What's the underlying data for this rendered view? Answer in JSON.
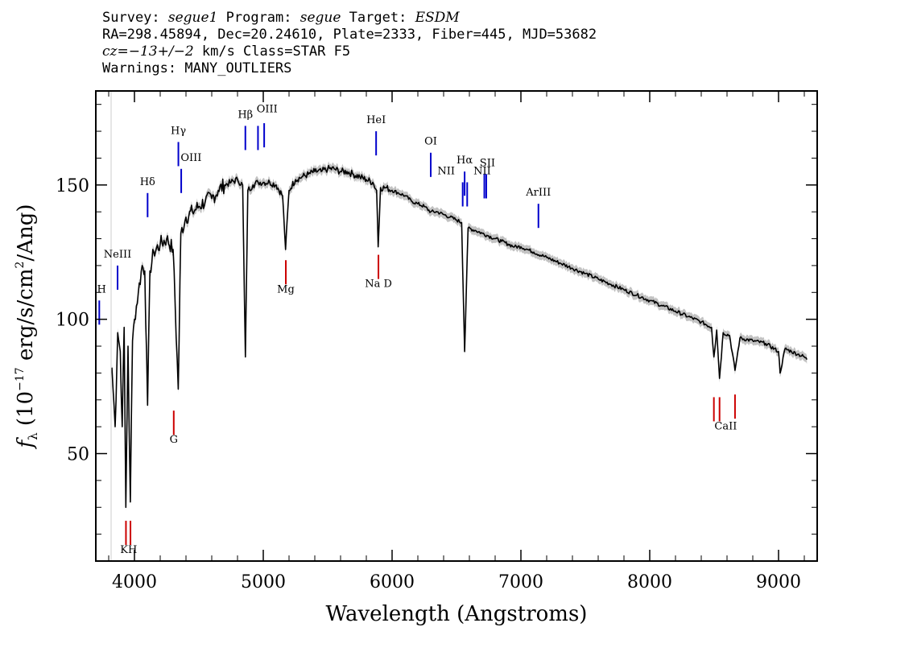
{
  "header": {
    "line1": {
      "survey_label": "Survey: ",
      "survey": "segue1",
      "program_label": " Program: ",
      "program": "segue",
      "target_label": " Target: ",
      "target": "ESDM"
    },
    "line2": "RA=298.45894, Dec=20.24610, Plate=2333, Fiber=445, MJD=53682",
    "line3": {
      "cz_sym": "cz",
      "cz_val": "=−13+/−2",
      "rest": " km/s Class=STAR F5"
    },
    "line4": "Warnings: MANY_OUTLIERS"
  },
  "chart_data": {
    "type": "line",
    "title": "",
    "xlabel": "Wavelength (Angstroms)",
    "ylabel_prefix": "f",
    "ylabel_sub": "λ",
    "ylabel_rest": " (10",
    "ylabel_exp": "−17",
    "ylabel_units": " erg/s/cm",
    "ylabel_exp2": "2",
    "ylabel_tail": "/Ang)",
    "xlim": [
      3700,
      9300
    ],
    "ylim": [
      10,
      185
    ],
    "xticks": [
      4000,
      5000,
      6000,
      7000,
      8000,
      9000
    ],
    "yticks": [
      50,
      100,
      150
    ],
    "grid": false,
    "colors": {
      "spectrum": "#000000",
      "error": "#bbbbbb",
      "emission": "#0000cc",
      "absorption": "#cc0000"
    },
    "spectrum": [
      [
        3825,
        82
      ],
      [
        3850,
        60
      ],
      [
        3870,
        95
      ],
      [
        3890,
        88
      ],
      [
        3905,
        60
      ],
      [
        3920,
        97
      ],
      [
        3933,
        30
      ],
      [
        3950,
        90
      ],
      [
        3968,
        32
      ],
      [
        3985,
        92
      ],
      [
        4000,
        100
      ],
      [
        4030,
        110
      ],
      [
        4060,
        120
      ],
      [
        4080,
        118
      ],
      [
        4102,
        68
      ],
      [
        4120,
        118
      ],
      [
        4150,
        125
      ],
      [
        4200,
        128
      ],
      [
        4250,
        130
      ],
      [
        4300,
        126
      ],
      [
        4340,
        74
      ],
      [
        4360,
        132
      ],
      [
        4400,
        138
      ],
      [
        4450,
        140
      ],
      [
        4500,
        142
      ],
      [
        4550,
        144
      ],
      [
        4600,
        145
      ],
      [
        4650,
        148
      ],
      [
        4700,
        150
      ],
      [
        4750,
        151
      ],
      [
        4800,
        152
      ],
      [
        4840,
        150
      ],
      [
        4861,
        86
      ],
      [
        4880,
        148
      ],
      [
        4920,
        150
      ],
      [
        4960,
        151
      ],
      [
        5000,
        151
      ],
      [
        5050,
        151
      ],
      [
        5100,
        150
      ],
      [
        5150,
        146
      ],
      [
        5173,
        126
      ],
      [
        5200,
        148
      ],
      [
        5250,
        152
      ],
      [
        5300,
        153
      ],
      [
        5350,
        154
      ],
      [
        5400,
        155
      ],
      [
        5450,
        155
      ],
      [
        5500,
        156
      ],
      [
        5550,
        156
      ],
      [
        5600,
        155
      ],
      [
        5650,
        155
      ],
      [
        5700,
        154
      ],
      [
        5750,
        153
      ],
      [
        5800,
        152
      ],
      [
        5850,
        151
      ],
      [
        5880,
        148
      ],
      [
        5892,
        127
      ],
      [
        5910,
        149
      ],
      [
        5950,
        149
      ],
      [
        6000,
        148
      ],
      [
        6050,
        147
      ],
      [
        6100,
        146
      ],
      [
        6150,
        144
      ],
      [
        6200,
        143
      ],
      [
        6250,
        142
      ],
      [
        6300,
        140
      ],
      [
        6350,
        140
      ],
      [
        6400,
        139
      ],
      [
        6450,
        138
      ],
      [
        6500,
        137
      ],
      [
        6540,
        136
      ],
      [
        6563,
        88
      ],
      [
        6590,
        134
      ],
      [
        6650,
        133
      ],
      [
        6700,
        132
      ],
      [
        6750,
        131
      ],
      [
        6800,
        130
      ],
      [
        6850,
        129
      ],
      [
        6900,
        128
      ],
      [
        6950,
        127
      ],
      [
        7000,
        127
      ],
      [
        7050,
        126
      ],
      [
        7100,
        125
      ],
      [
        7200,
        123
      ],
      [
        7300,
        121
      ],
      [
        7400,
        119
      ],
      [
        7500,
        117
      ],
      [
        7600,
        115
      ],
      [
        7700,
        113
      ],
      [
        7800,
        111
      ],
      [
        7900,
        109
      ],
      [
        8000,
        107
      ],
      [
        8100,
        105
      ],
      [
        8200,
        103
      ],
      [
        8300,
        101
      ],
      [
        8400,
        99
      ],
      [
        8480,
        97
      ],
      [
        8498,
        86
      ],
      [
        8520,
        96
      ],
      [
        8542,
        78
      ],
      [
        8570,
        95
      ],
      [
        8620,
        94
      ],
      [
        8662,
        81
      ],
      [
        8700,
        93
      ],
      [
        8800,
        92
      ],
      [
        8900,
        91
      ],
      [
        9000,
        88
      ],
      [
        9012,
        80
      ],
      [
        9050,
        89
      ],
      [
        9100,
        88
      ],
      [
        9150,
        87
      ],
      [
        9200,
        86
      ],
      [
        9220,
        85
      ]
    ],
    "line_marks": [
      {
        "label": "H",
        "kind": "emission",
        "x": 3727,
        "y_bottom": 98,
        "y_top": 107,
        "lx": 3745,
        "ly": 110
      },
      {
        "label": "NeIII",
        "kind": "emission",
        "x": 3869,
        "y_bottom": 111,
        "y_top": 120,
        "lx": 3869,
        "ly": 123
      },
      {
        "label": "Hδ",
        "kind": "emission",
        "x": 4102,
        "y_bottom": 138,
        "y_top": 147,
        "lx": 4102,
        "ly": 150
      },
      {
        "label": "Hγ",
        "kind": "emission",
        "x": 4341,
        "y_bottom": 157,
        "y_top": 166,
        "lx": 4341,
        "ly": 169
      },
      {
        "label": "OIII",
        "kind": "emission",
        "x": 4363,
        "y_bottom": 147,
        "y_top": 156,
        "lx": 4440,
        "ly": 159
      },
      {
        "label": "Hβ",
        "kind": "emission",
        "x": 4861,
        "y_bottom": 163,
        "y_top": 172,
        "lx": 4861,
        "ly": 175
      },
      {
        "label": "OIII",
        "kind": "emission",
        "x": 4959,
        "y_bottom": 163,
        "y_top": 172,
        "lx": 5030,
        "ly": 177
      },
      {
        "label": "",
        "kind": "emission",
        "x": 5007,
        "y_bottom": 164,
        "y_top": 173,
        "lx": 5007,
        "ly": 176
      },
      {
        "label": "HeI",
        "kind": "emission",
        "x": 5876,
        "y_bottom": 161,
        "y_top": 170,
        "lx": 5876,
        "ly": 173
      },
      {
        "label": "OI",
        "kind": "emission",
        "x": 6300,
        "y_bottom": 153,
        "y_top": 162,
        "lx": 6300,
        "ly": 165
      },
      {
        "label": "NII",
        "kind": "emission",
        "x": 6548,
        "y_bottom": 142,
        "y_top": 151,
        "lx": 6420,
        "ly": 154
      },
      {
        "label": "Hα",
        "kind": "emission",
        "x": 6563,
        "y_bottom": 146,
        "y_top": 155,
        "lx": 6563,
        "ly": 158
      },
      {
        "label": "",
        "kind": "emission",
        "x": 6583,
        "y_bottom": 142,
        "y_top": 151,
        "lx": 6583,
        "ly": 154
      },
      {
        "label": "NII",
        "kind": "emission",
        "x": 6716,
        "y_bottom": 145,
        "y_top": 154,
        "lx": 6700,
        "ly": 154
      },
      {
        "label": "SII",
        "kind": "emission",
        "x": 6731,
        "y_bottom": 145,
        "y_top": 154,
        "lx": 6740,
        "ly": 157
      },
      {
        "label": "ArIII",
        "kind": "emission",
        "x": 7136,
        "y_bottom": 134,
        "y_top": 143,
        "lx": 7136,
        "ly": 146
      },
      {
        "label": "KH",
        "kind": "absorption",
        "x": 3934,
        "y_bottom": 16,
        "y_top": 25,
        "lx": 3955,
        "ly": 13
      },
      {
        "label": "",
        "kind": "absorption",
        "x": 3969,
        "y_bottom": 16,
        "y_top": 25,
        "lx": 3969,
        "ly": 13
      },
      {
        "label": "G",
        "kind": "absorption",
        "x": 4305,
        "y_bottom": 57,
        "y_top": 66,
        "lx": 4305,
        "ly": 54
      },
      {
        "label": "Mg",
        "kind": "absorption",
        "x": 5175,
        "y_bottom": 113,
        "y_top": 122,
        "lx": 5175,
        "ly": 110
      },
      {
        "label": "Na D",
        "kind": "absorption",
        "x": 5894,
        "y_bottom": 115,
        "y_top": 124,
        "lx": 5894,
        "ly": 112
      },
      {
        "label": "CaII",
        "kind": "absorption",
        "x": 8498,
        "y_bottom": 62,
        "y_top": 71,
        "lx": 8590,
        "ly": 59
      },
      {
        "label": "",
        "kind": "absorption",
        "x": 8542,
        "y_bottom": 62,
        "y_top": 71,
        "lx": 8542,
        "ly": 59
      },
      {
        "label": "",
        "kind": "absorption",
        "x": 8662,
        "y_bottom": 63,
        "y_top": 72,
        "lx": 8662,
        "ly": 60
      }
    ]
  }
}
